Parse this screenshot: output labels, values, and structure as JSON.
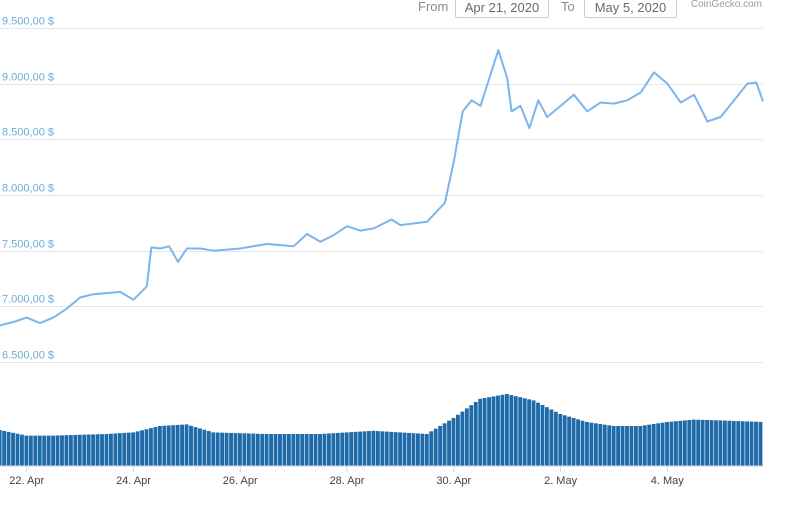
{
  "range_selector": {
    "from_label": "From",
    "from_value": "Apr 21, 2020",
    "to_label": "To",
    "to_value": "May 5, 2020"
  },
  "credit": "CoinGecko.com",
  "chart_data": {
    "type": "line",
    "title": "",
    "xlabel": "",
    "ylabel": "",
    "x_start": "2020-04-21T12:00",
    "x_end": "2020-05-05T19:00",
    "x_step_hours": 2,
    "ylim": [
      6250,
      9750
    ],
    "yticks": [
      6500,
      7000,
      7500,
      8000,
      8500,
      9000,
      9500
    ],
    "ytick_labels": [
      "6.500,00 $",
      "7.000,00 $",
      "7.500,00 $",
      "8.000,00 $",
      "8.500,00 $",
      "9.000,00 $",
      "9.500,00 $"
    ],
    "xtick_labels": [
      "22. Apr",
      "24. Apr",
      "26. Apr",
      "28. Apr",
      "30. Apr",
      "2. May",
      "4. May"
    ],
    "xtick_dates": [
      "2020-04-22",
      "2020-04-24",
      "2020-04-26",
      "2020-04-28",
      "2020-04-30",
      "2020-05-02",
      "2020-05-04"
    ],
    "grid": true,
    "line_color": "#7cb5ec",
    "volume_color": "#1f6aa8",
    "price_keypoints": [
      [
        "2020-04-21T12:00",
        6830
      ],
      [
        "2020-04-21T18:00",
        6860
      ],
      [
        "2020-04-22T00:00",
        6900
      ],
      [
        "2020-04-22T06:00",
        6850
      ],
      [
        "2020-04-22T12:00",
        6900
      ],
      [
        "2020-04-22T18:00",
        6980
      ],
      [
        "2020-04-23T00:00",
        7080
      ],
      [
        "2020-04-23T06:00",
        7110
      ],
      [
        "2020-04-23T12:00",
        7120
      ],
      [
        "2020-04-23T18:00",
        7130
      ],
      [
        "2020-04-24T00:00",
        7060
      ],
      [
        "2020-04-24T06:00",
        7180
      ],
      [
        "2020-04-24T08:00",
        7530
      ],
      [
        "2020-04-24T12:00",
        7520
      ],
      [
        "2020-04-24T16:00",
        7540
      ],
      [
        "2020-04-24T20:00",
        7400
      ],
      [
        "2020-04-25T00:00",
        7520
      ],
      [
        "2020-04-25T06:00",
        7520
      ],
      [
        "2020-04-25T12:00",
        7500
      ],
      [
        "2020-04-26T00:00",
        7520
      ],
      [
        "2020-04-26T12:00",
        7560
      ],
      [
        "2020-04-27T00:00",
        7540
      ],
      [
        "2020-04-27T06:00",
        7650
      ],
      [
        "2020-04-27T12:00",
        7580
      ],
      [
        "2020-04-27T18:00",
        7640
      ],
      [
        "2020-04-28T00:00",
        7720
      ],
      [
        "2020-04-28T06:00",
        7680
      ],
      [
        "2020-04-28T12:00",
        7700
      ],
      [
        "2020-04-28T20:00",
        7780
      ],
      [
        "2020-04-29T00:00",
        7730
      ],
      [
        "2020-04-29T12:00",
        7760
      ],
      [
        "2020-04-29T20:00",
        7930
      ],
      [
        "2020-04-30T00:00",
        8300
      ],
      [
        "2020-04-30T04:00",
        8750
      ],
      [
        "2020-04-30T08:00",
        8850
      ],
      [
        "2020-04-30T12:00",
        8800
      ],
      [
        "2020-04-30T16:00",
        9050
      ],
      [
        "2020-04-30T20:00",
        9300
      ],
      [
        "2020-05-01T00:00",
        9050
      ],
      [
        "2020-05-01T02:00",
        8750
      ],
      [
        "2020-05-01T06:00",
        8800
      ],
      [
        "2020-05-01T10:00",
        8600
      ],
      [
        "2020-05-01T14:00",
        8850
      ],
      [
        "2020-05-01T18:00",
        8700
      ],
      [
        "2020-05-02T00:00",
        8800
      ],
      [
        "2020-05-02T06:00",
        8900
      ],
      [
        "2020-05-02T12:00",
        8750
      ],
      [
        "2020-05-02T18:00",
        8830
      ],
      [
        "2020-05-03T00:00",
        8820
      ],
      [
        "2020-05-03T06:00",
        8850
      ],
      [
        "2020-05-03T12:00",
        8920
      ],
      [
        "2020-05-03T18:00",
        9100
      ],
      [
        "2020-05-04T00:00",
        9000
      ],
      [
        "2020-05-04T06:00",
        8830
      ],
      [
        "2020-05-04T12:00",
        8900
      ],
      [
        "2020-05-04T18:00",
        8660
      ],
      [
        "2020-05-05T00:00",
        8700
      ],
      [
        "2020-05-05T06:00",
        8850
      ],
      [
        "2020-05-05T12:00",
        9000
      ],
      [
        "2020-05-05T16:00",
        9010
      ],
      [
        "2020-05-05T19:00",
        8840
      ]
    ],
    "volume_keypoints": [
      [
        "2020-04-21T12:00",
        0.45
      ],
      [
        "2020-04-22T00:00",
        0.38
      ],
      [
        "2020-04-22T12:00",
        0.38
      ],
      [
        "2020-04-23T12:00",
        0.4
      ],
      [
        "2020-04-24T00:00",
        0.42
      ],
      [
        "2020-04-24T12:00",
        0.5
      ],
      [
        "2020-04-25T00:00",
        0.52
      ],
      [
        "2020-04-25T12:00",
        0.42
      ],
      [
        "2020-04-26T12:00",
        0.4
      ],
      [
        "2020-04-27T12:00",
        0.4
      ],
      [
        "2020-04-28T12:00",
        0.44
      ],
      [
        "2020-04-29T12:00",
        0.4
      ],
      [
        "2020-04-30T00:00",
        0.6
      ],
      [
        "2020-04-30T12:00",
        0.84
      ],
      [
        "2020-05-01T00:00",
        0.9
      ],
      [
        "2020-05-01T12:00",
        0.82
      ],
      [
        "2020-05-02T00:00",
        0.65
      ],
      [
        "2020-05-02T12:00",
        0.55
      ],
      [
        "2020-05-03T00:00",
        0.5
      ],
      [
        "2020-05-03T12:00",
        0.5
      ],
      [
        "2020-05-04T00:00",
        0.55
      ],
      [
        "2020-05-04T12:00",
        0.58
      ],
      [
        "2020-05-05T00:00",
        0.57
      ],
      [
        "2020-05-05T19:00",
        0.55
      ]
    ]
  }
}
